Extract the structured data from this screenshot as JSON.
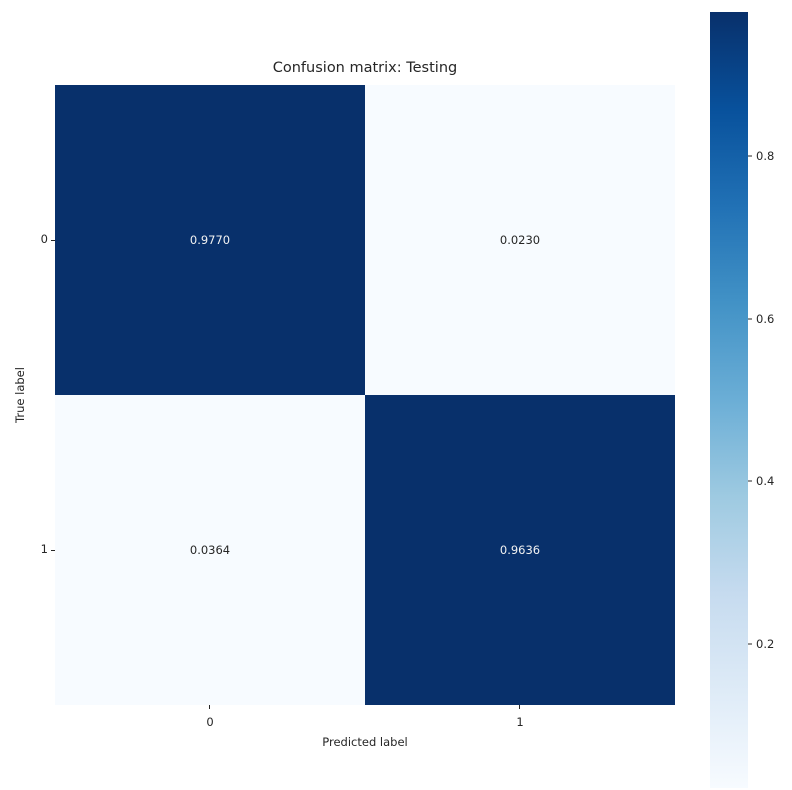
{
  "chart_data": {
    "type": "heatmap",
    "title": "Confusion matrix: Testing",
    "xlabel": "Predicted label",
    "ylabel": "True label",
    "x_tick_labels": [
      "0",
      "1"
    ],
    "y_tick_labels": [
      "0",
      "1"
    ],
    "values": [
      [
        0.977,
        0.023
      ],
      [
        0.0364,
        0.9636
      ]
    ],
    "cell_labels": [
      [
        "0.9770",
        "0.0230"
      ],
      [
        "0.0364",
        "0.9636"
      ]
    ],
    "colormap": "Blues",
    "vmin": 0.023,
    "vmax": 0.977,
    "colorbar": {
      "position": "right",
      "ticks": [
        0.2,
        0.4,
        0.6,
        0.8
      ],
      "tick_labels": [
        "0.2",
        "0.4",
        "0.6",
        "0.8"
      ]
    },
    "colors": {
      "high": "#08306b",
      "low": "#f7fbff",
      "text_on_dark": "#f2f2f2",
      "text_on_light": "#262626",
      "tick": "#262626",
      "background": "#ffffff"
    },
    "grid": false,
    "legend": false
  }
}
